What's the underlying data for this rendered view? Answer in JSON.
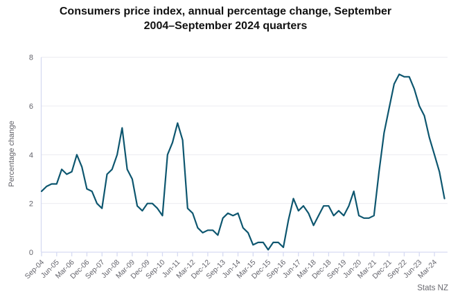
{
  "title": "Consumers price index, annual percentage change, September 2004–September 2024 quarters",
  "title_lines": [
    "Consumers price index, annual percentage change, September",
    "2004–September 2024 quarters"
  ],
  "source_label": "Stats NZ",
  "colors": {
    "line": "#0d566f",
    "grid": "#ebebf0",
    "axis": "#d6daf2",
    "tick_label": "#63636b",
    "title": "#111111",
    "source_text": "#69696f"
  },
  "chart_data": {
    "type": "line",
    "title": "Consumers price index, annual percentage change, September 2004–September 2024 quarters",
    "xlabel": "",
    "ylabel": "Percentage change",
    "ylim": [
      0,
      8
    ],
    "yticks": [
      0,
      2,
      4,
      6,
      8
    ],
    "xtick_every": 3,
    "grid": "horizontal",
    "legend": "none",
    "x": [
      "Sep-04",
      "Dec-04",
      "Mar-05",
      "Jun-05",
      "Sep-05",
      "Dec-05",
      "Mar-06",
      "Jun-06",
      "Sep-06",
      "Dec-06",
      "Mar-07",
      "Jun-07",
      "Sep-07",
      "Dec-07",
      "Mar-08",
      "Jun-08",
      "Sep-08",
      "Dec-08",
      "Mar-09",
      "Jun-09",
      "Sep-09",
      "Dec-09",
      "Mar-10",
      "Jun-10",
      "Sep-10",
      "Dec-10",
      "Mar-11",
      "Jun-11",
      "Sep-11",
      "Dec-11",
      "Mar-12",
      "Jun-12",
      "Sep-12",
      "Dec-12",
      "Mar-13",
      "Jun-13",
      "Sep-13",
      "Dec-13",
      "Mar-14",
      "Jun-14",
      "Sep-14",
      "Dec-14",
      "Mar-15",
      "Jun-15",
      "Sep-15",
      "Dec-15",
      "Mar-16",
      "Jun-16",
      "Sep-16",
      "Dec-16",
      "Mar-17",
      "Jun-17",
      "Sep-17",
      "Dec-17",
      "Mar-18",
      "Jun-18",
      "Sep-18",
      "Dec-18",
      "Mar-19",
      "Jun-19",
      "Sep-19",
      "Dec-19",
      "Mar-20",
      "Jun-20",
      "Sep-20",
      "Dec-20",
      "Mar-21",
      "Jun-21",
      "Sep-21",
      "Dec-21",
      "Mar-22",
      "Jun-22",
      "Sep-22",
      "Dec-22",
      "Mar-23",
      "Jun-23",
      "Sep-23",
      "Dec-23",
      "Mar-24",
      "Jun-24",
      "Sep-24"
    ],
    "series": [
      {
        "name": "CPI annual percentage change",
        "values": [
          2.5,
          2.7,
          2.8,
          2.8,
          3.4,
          3.2,
          3.3,
          4.0,
          3.5,
          2.6,
          2.5,
          2.0,
          1.8,
          3.2,
          3.4,
          4.0,
          5.1,
          3.4,
          3.0,
          1.9,
          1.7,
          2.0,
          2.0,
          1.8,
          1.5,
          4.0,
          4.5,
          5.3,
          4.6,
          1.8,
          1.6,
          1.0,
          0.8,
          0.9,
          0.9,
          0.7,
          1.4,
          1.6,
          1.5,
          1.6,
          1.0,
          0.8,
          0.3,
          0.4,
          0.4,
          0.1,
          0.4,
          0.4,
          0.2,
          1.3,
          2.2,
          1.7,
          1.9,
          1.6,
          1.1,
          1.5,
          1.9,
          1.9,
          1.5,
          1.7,
          1.5,
          1.9,
          2.5,
          1.5,
          1.4,
          1.4,
          1.5,
          3.3,
          4.9,
          5.9,
          6.9,
          7.3,
          7.2,
          7.2,
          6.7,
          6.0,
          5.6,
          4.7,
          4.0,
          3.3,
          2.2
        ]
      }
    ]
  }
}
